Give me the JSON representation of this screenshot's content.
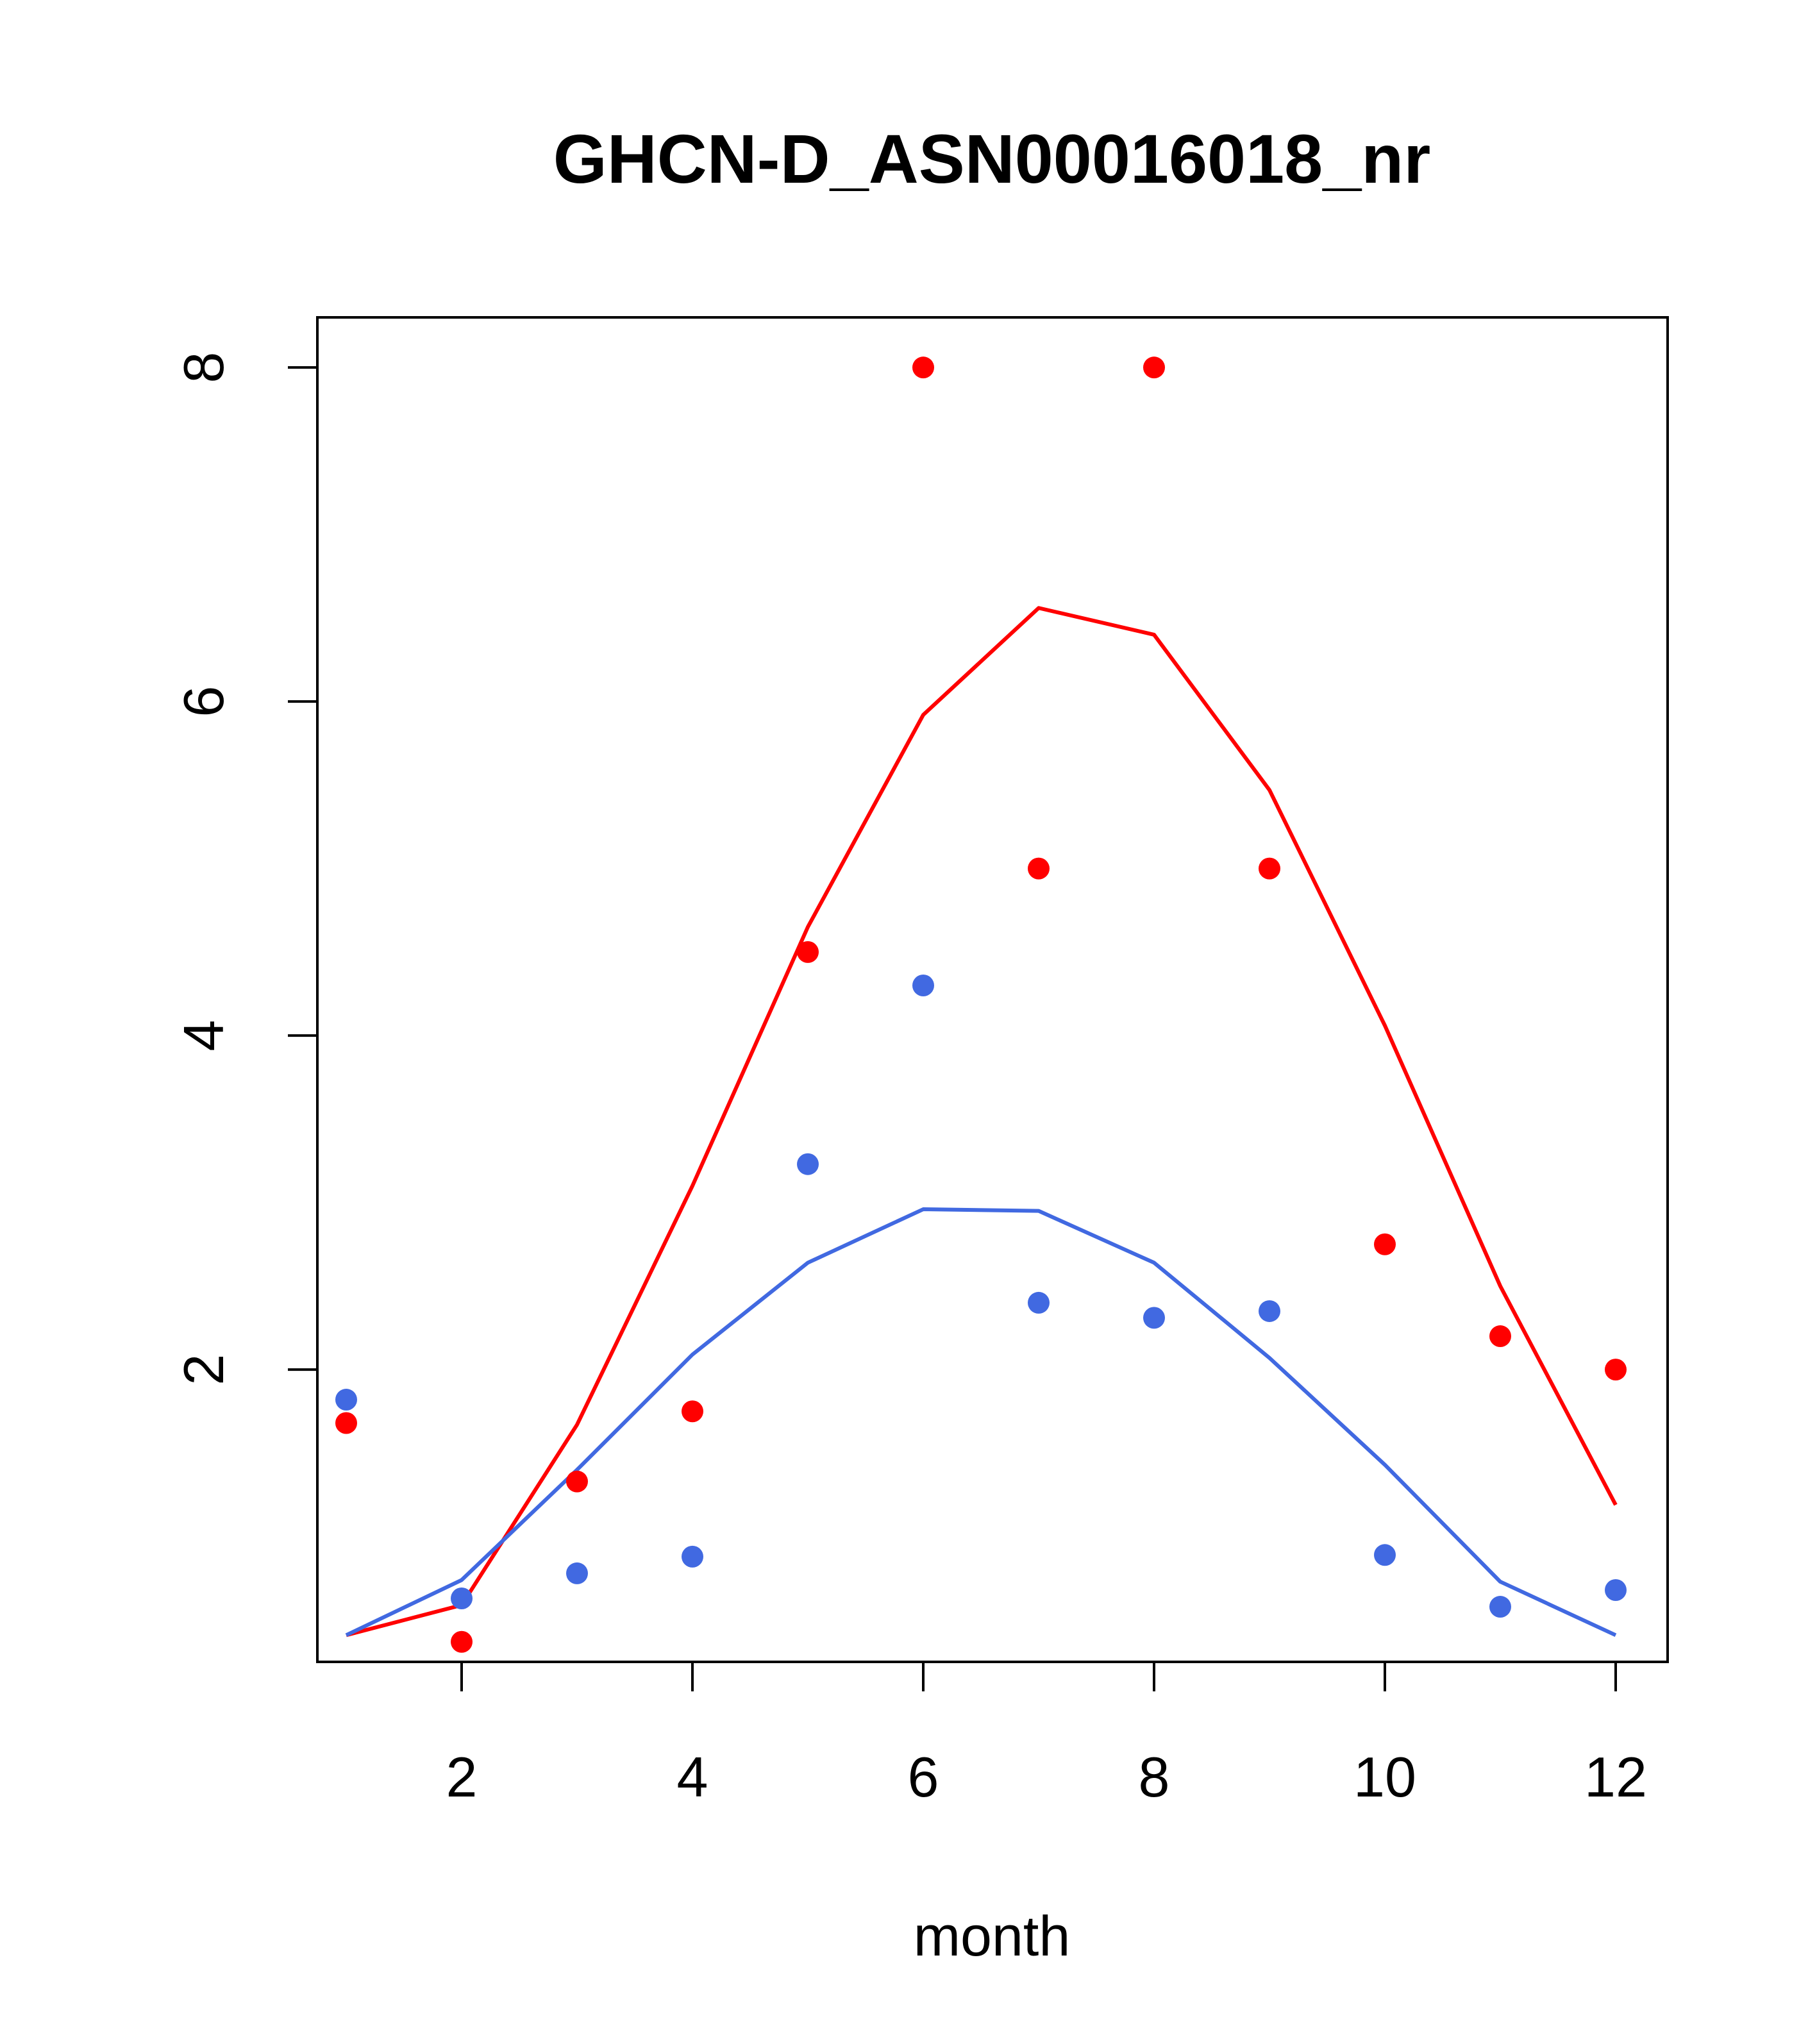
{
  "chart_data": {
    "type": "scatter",
    "title": "GHCN-D_ASN00016018_nr",
    "xlabel": "month",
    "ylabel": "",
    "xlim": [
      0.75,
      12.45
    ],
    "ylim": [
      0.25,
      8.3
    ],
    "x_ticks": [
      2,
      4,
      6,
      8,
      10,
      12
    ],
    "y_ticks": [
      2,
      4,
      6,
      8
    ],
    "grid": false,
    "legend": "none",
    "series": [
      {
        "name": "red-points",
        "kind": "points",
        "color": "#ff0000",
        "x": [
          1,
          2,
          3,
          4,
          5,
          6,
          7,
          8,
          9,
          10,
          11,
          12
        ],
        "y": [
          1.68,
          0.37,
          1.33,
          1.75,
          4.5,
          8.0,
          5.0,
          8.0,
          5.0,
          2.75,
          2.2,
          2.0
        ]
      },
      {
        "name": "blue-points",
        "kind": "points",
        "color": "#4169e1",
        "x": [
          1,
          2,
          3,
          4,
          5,
          6,
          7,
          8,
          9,
          10,
          11,
          12
        ],
        "y": [
          1.82,
          0.63,
          0.78,
          0.88,
          3.23,
          4.3,
          2.4,
          2.31,
          2.35,
          0.89,
          0.58,
          0.68
        ]
      },
      {
        "name": "red-line",
        "kind": "line",
        "color": "#ff0000",
        "x": [
          1,
          2,
          3,
          4,
          5,
          6,
          7,
          8,
          9,
          10,
          11,
          12
        ],
        "y": [
          0.41,
          0.59,
          1.67,
          3.1,
          4.65,
          5.92,
          6.56,
          6.4,
          5.47,
          4.06,
          2.5,
          1.19
        ]
      },
      {
        "name": "blue-line",
        "kind": "line",
        "color": "#4169e1",
        "x": [
          1,
          2,
          3,
          4,
          5,
          6,
          7,
          8,
          9,
          10,
          11,
          12
        ],
        "y": [
          0.41,
          0.74,
          1.4,
          2.09,
          2.64,
          2.96,
          2.95,
          2.64,
          2.07,
          1.43,
          0.73,
          0.41
        ]
      }
    ]
  }
}
